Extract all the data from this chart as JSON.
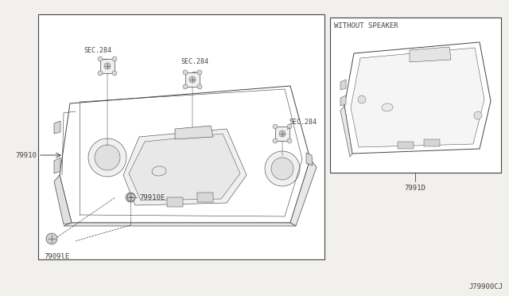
{
  "bg_color": "#f2f0ec",
  "line_color": "#444444",
  "white": "#ffffff",
  "title_code": "J79900CJ",
  "right_box_label": "WITHOUT SPEAKER",
  "part_79910": "79910",
  "part_79910E": "79910E",
  "part_7909lE": "7909lE",
  "part_7991D": "7991D",
  "sec1": "SEC.284",
  "sec2": "SEC.284",
  "sec3": "SEC.284",
  "font_size": 6.5,
  "small_font": 6.0,
  "lw": 0.7
}
